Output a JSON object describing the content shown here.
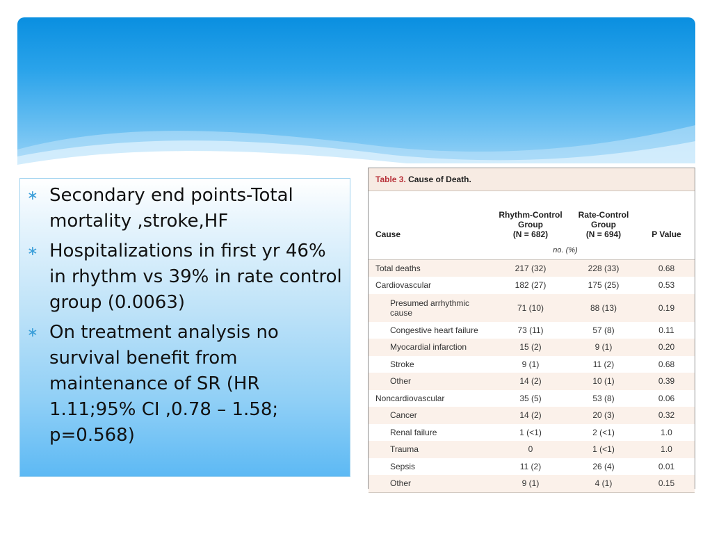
{
  "slide": {
    "bullets": [
      "Secondary end points-Total mortality ,stroke,HF",
      "Hospitalizations in first yr 46% in rhythm vs 39% in rate control group (0.0063)",
      "On treatment analysis no survival benefit from maintenance of SR (HR 1.11;95% CI ,0.78 – 1.58; p=0.568)"
    ],
    "bullet_glyph": "∗"
  },
  "table": {
    "title_prefix": "Table 3.",
    "title_text": "Cause of Death.",
    "headers": {
      "cause": "Cause",
      "rhythm_line1": "Rhythm-Control",
      "rhythm_line2": "Group",
      "rhythm_line3": "(N = 682)",
      "rate_line1": "Rate-Control",
      "rate_line2": "Group",
      "rate_line3": "(N = 694)",
      "pvalue": "P Value"
    },
    "units": "no. (%)",
    "rows": [
      {
        "cause": "Total deaths",
        "rhythm": "217 (32)",
        "rate": "228 (33)",
        "p": "0.68",
        "indent": false
      },
      {
        "cause": "Cardiovascular",
        "rhythm": "182 (27)",
        "rate": "175 (25)",
        "p": "0.53",
        "indent": false
      },
      {
        "cause": "Presumed arrhythmic cause",
        "rhythm": "71 (10)",
        "rate": "88 (13)",
        "p": "0.19",
        "indent": true
      },
      {
        "cause": "Congestive heart failure",
        "rhythm": "73 (11)",
        "rate": "57 (8)",
        "p": "0.11",
        "indent": true
      },
      {
        "cause": "Myocardial infarction",
        "rhythm": "15 (2)",
        "rate": "9 (1)",
        "p": "0.20",
        "indent": true
      },
      {
        "cause": "Stroke",
        "rhythm": "9 (1)",
        "rate": "11 (2)",
        "p": "0.68",
        "indent": true
      },
      {
        "cause": "Other",
        "rhythm": "14 (2)",
        "rate": "10 (1)",
        "p": "0.39",
        "indent": true
      },
      {
        "cause": "Noncardiovascular",
        "rhythm": "35 (5)",
        "rate": "53 (8)",
        "p": "0.06",
        "indent": false
      },
      {
        "cause": "Cancer",
        "rhythm": "14 (2)",
        "rate": "20 (3)",
        "p": "0.32",
        "indent": true
      },
      {
        "cause": "Renal failure",
        "rhythm": "1 (<1)",
        "rate": "2 (<1)",
        "p": "1.0",
        "indent": true
      },
      {
        "cause": "Trauma",
        "rhythm": "0",
        "rate": "1 (<1)",
        "p": "1.0",
        "indent": true
      },
      {
        "cause": "Sepsis",
        "rhythm": "11 (2)",
        "rate": "26 (4)",
        "p": "0.01",
        "indent": true
      },
      {
        "cause": "Other",
        "rhythm": "9 (1)",
        "rate": "4 (1)",
        "p": "0.15",
        "indent": true
      }
    ]
  }
}
